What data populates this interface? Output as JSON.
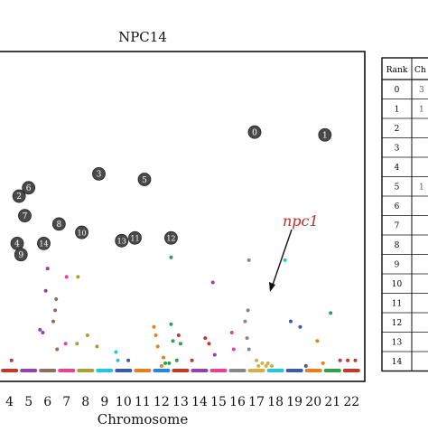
{
  "chart_data": {
    "type": "scatter",
    "title": "NPC14",
    "xlabel": "Chromosome",
    "ylabel": "",
    "x_ticks": [
      "4",
      "5",
      "6",
      "7",
      "8",
      "9",
      "10",
      "11",
      "12",
      "13",
      "14",
      "15",
      "16",
      "17",
      "18",
      "19",
      "20",
      "21",
      "22"
    ],
    "chromosome_bars": [
      {
        "label": "4",
        "color": "#c0392b"
      },
      {
        "label": "5",
        "color": "#8e44ad"
      },
      {
        "label": "6",
        "color": "#8d6e63"
      },
      {
        "label": "7",
        "color": "#e84393"
      },
      {
        "label": "8",
        "color": "#a6a03a"
      },
      {
        "label": "9",
        "color": "#26c6da"
      },
      {
        "label": "10",
        "color": "#3d5aa8"
      },
      {
        "label": "11",
        "color": "#e67e22"
      },
      {
        "label": "12",
        "color": "#1e88e5"
      },
      {
        "label": "13",
        "color": "#c0392b"
      },
      {
        "label": "14",
        "color": "#8e44ad"
      },
      {
        "label": "15",
        "color": "#e84393"
      },
      {
        "label": "16",
        "color": "#888888"
      },
      {
        "label": "17",
        "color": "#d4b04a"
      },
      {
        "label": "18",
        "color": "#26c6da"
      },
      {
        "label": "19",
        "color": "#3d5aa8"
      },
      {
        "label": "20",
        "color": "#e67e22"
      },
      {
        "label": "21",
        "color": "#2e9e4f"
      },
      {
        "label": "22",
        "color": "#c0392b"
      }
    ],
    "ranked_points": [
      {
        "rank": "0",
        "pos": 16.9,
        "score": 0.85
      },
      {
        "rank": "1",
        "pos": 20.6,
        "score": 0.84
      },
      {
        "rank": "2",
        "pos": 4.5,
        "score": 0.62
      },
      {
        "rank": "3",
        "pos": 8.7,
        "score": 0.7
      },
      {
        "rank": "4",
        "pos": 4.4,
        "score": 0.45
      },
      {
        "rank": "5",
        "pos": 11.1,
        "score": 0.68
      },
      {
        "rank": "6",
        "pos": 5.0,
        "score": 0.65
      },
      {
        "rank": "7",
        "pos": 4.8,
        "score": 0.55
      },
      {
        "rank": "8",
        "pos": 6.6,
        "score": 0.52
      },
      {
        "rank": "9",
        "pos": 4.6,
        "score": 0.41
      },
      {
        "rank": "10",
        "pos": 7.8,
        "score": 0.49
      },
      {
        "rank": "11",
        "pos": 10.6,
        "score": 0.47
      },
      {
        "rank": "12",
        "pos": 12.5,
        "score": 0.47
      },
      {
        "rank": "13",
        "pos": 9.9,
        "score": 0.46
      },
      {
        "rank": "14",
        "pos": 5.8,
        "score": 0.45
      }
    ],
    "small_points": [
      {
        "pos": 4.1,
        "score": 0.03,
        "color": "#c0392b"
      },
      {
        "pos": 5.6,
        "score": 0.14,
        "color": "#8e44ad"
      },
      {
        "pos": 5.75,
        "score": 0.13,
        "color": "#8e44ad"
      },
      {
        "pos": 5.9,
        "score": 0.28,
        "color": "#8e44ad"
      },
      {
        "pos": 6.0,
        "score": 0.36,
        "color": "#8e44ad"
      },
      {
        "pos": 6.3,
        "score": 0.17,
        "color": "#8d6e63"
      },
      {
        "pos": 6.45,
        "score": 0.25,
        "color": "#8d6e63"
      },
      {
        "pos": 6.5,
        "score": 0.07,
        "color": "#8d6e63"
      },
      {
        "pos": 6.4,
        "score": 0.21,
        "color": "#8d6e63"
      },
      {
        "pos": 7.0,
        "score": 0.33,
        "color": "#e84393"
      },
      {
        "pos": 6.95,
        "score": 0.09,
        "color": "#e84393"
      },
      {
        "pos": 7.6,
        "score": 0.33,
        "color": "#a6a03a"
      },
      {
        "pos": 7.55,
        "score": 0.09,
        "color": "#a6a03a"
      },
      {
        "pos": 8.1,
        "score": 0.12,
        "color": "#a6a03a"
      },
      {
        "pos": 8.6,
        "score": 0.08,
        "color": "#a6a03a"
      },
      {
        "pos": 9.6,
        "score": 0.06,
        "color": "#26c6da"
      },
      {
        "pos": 9.7,
        "score": 0.03,
        "color": "#26c6da"
      },
      {
        "pos": 10.25,
        "score": 0.03,
        "color": "#3d5aa8"
      },
      {
        "pos": 11.6,
        "score": 0.15,
        "color": "#e67e22"
      },
      {
        "pos": 11.7,
        "score": 0.12,
        "color": "#e67e22"
      },
      {
        "pos": 11.8,
        "score": 0.08,
        "color": "#e67e22"
      },
      {
        "pos": 12.1,
        "score": 0.04,
        "color": "#e67e22"
      },
      {
        "pos": 12.0,
        "score": 0.01,
        "color": "#e67e22"
      },
      {
        "pos": 12.2,
        "score": 0.02,
        "color": "#2e9e4f"
      },
      {
        "pos": 12.4,
        "score": 0.02,
        "color": "#2e9e4f"
      },
      {
        "pos": 12.5,
        "score": 0.16,
        "color": "#2e9e4f"
      },
      {
        "pos": 12.6,
        "score": 0.1,
        "color": "#2e9e4f"
      },
      {
        "pos": 12.8,
        "score": 0.03,
        "color": "#2e9e4f"
      },
      {
        "pos": 13.0,
        "score": 0.09,
        "color": "#2e9e4f"
      },
      {
        "pos": 12.5,
        "score": 0.4,
        "color": "#2e9e4f"
      },
      {
        "pos": 12.9,
        "score": 0.12,
        "color": "#c0392b"
      },
      {
        "pos": 13.6,
        "score": 0.03,
        "color": "#c0392b"
      },
      {
        "pos": 14.3,
        "score": 0.11,
        "color": "#c0392b"
      },
      {
        "pos": 14.5,
        "score": 0.09,
        "color": "#c0392b"
      },
      {
        "pos": 14.7,
        "score": 0.31,
        "color": "#8e44ad"
      },
      {
        "pos": 14.8,
        "score": 0.05,
        "color": "#8e44ad"
      },
      {
        "pos": 15.7,
        "score": 0.13,
        "color": "#e84393"
      },
      {
        "pos": 15.8,
        "score": 0.07,
        "color": "#e84393"
      },
      {
        "pos": 16.4,
        "score": 0.17,
        "color": "#888888"
      },
      {
        "pos": 16.5,
        "score": 0.11,
        "color": "#888888"
      },
      {
        "pos": 16.6,
        "score": 0.39,
        "color": "#888888"
      },
      {
        "pos": 16.55,
        "score": 0.21,
        "color": "#888888"
      },
      {
        "pos": 16.6,
        "score": 0.07,
        "color": "#888888"
      },
      {
        "pos": 17.1,
        "score": 0.01,
        "color": "#d4b04a"
      },
      {
        "pos": 17.3,
        "score": 0.02,
        "color": "#d4b04a"
      },
      {
        "pos": 17.5,
        "score": 0.01,
        "color": "#d4b04a"
      },
      {
        "pos": 17.6,
        "score": 0.02,
        "color": "#d4b04a"
      },
      {
        "pos": 17.8,
        "score": 0.01,
        "color": "#d4b04a"
      },
      {
        "pos": 17.0,
        "score": 0.03,
        "color": "#d4b04a"
      },
      {
        "pos": 18.5,
        "score": 0.39,
        "color": "#26c6da"
      },
      {
        "pos": 18.8,
        "score": 0.17,
        "color": "#3d5aa8"
      },
      {
        "pos": 19.3,
        "score": 0.15,
        "color": "#3d5aa8"
      },
      {
        "pos": 19.6,
        "score": 0.01,
        "color": "#3d5aa8"
      },
      {
        "pos": 20.2,
        "score": 0.1,
        "color": "#e67e22"
      },
      {
        "pos": 20.5,
        "score": 0.02,
        "color": "#e67e22"
      },
      {
        "pos": 20.9,
        "score": 0.2,
        "color": "#2e9e4f"
      },
      {
        "pos": 21.4,
        "score": 0.03,
        "color": "#c0392b"
      },
      {
        "pos": 21.8,
        "score": 0.03,
        "color": "#c0392b"
      },
      {
        "pos": 22.2,
        "score": 0.03,
        "color": "#c0392b"
      }
    ],
    "annotation": {
      "text": "npc1",
      "color": "#c62828",
      "target": {
        "pos": 18.5,
        "score": 0.39
      }
    },
    "x_range": [
      3.4,
      22.7
    ],
    "y_range": [
      0,
      1
    ],
    "grid": false,
    "legend": "none"
  },
  "table": {
    "headers": [
      "Rank",
      "Ch"
    ],
    "rows": [
      [
        "0",
        "3"
      ],
      [
        "1",
        "1"
      ],
      [
        "2",
        ""
      ],
      [
        "3",
        ""
      ],
      [
        "4",
        ""
      ],
      [
        "5",
        "1"
      ],
      [
        "6",
        ""
      ],
      [
        "7",
        ""
      ],
      [
        "8",
        ""
      ],
      [
        "9",
        ""
      ],
      [
        "10",
        ""
      ],
      [
        "11",
        ""
      ],
      [
        "12",
        ""
      ],
      [
        "13",
        ""
      ],
      [
        "14",
        ""
      ]
    ]
  }
}
